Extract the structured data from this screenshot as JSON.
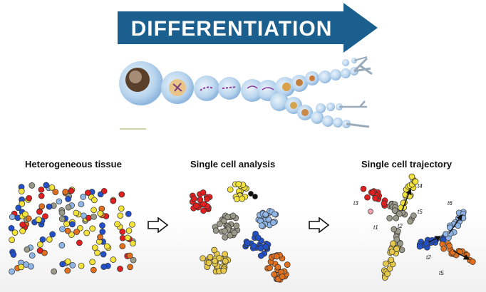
{
  "banner": {
    "title": "DIFFERENTIATION",
    "arrow_color": "#1a5f8e",
    "text_color": "#ffffff"
  },
  "panels": [
    {
      "title": "Heterogeneous tissue"
    },
    {
      "title": "Single cell analysis"
    },
    {
      "title": "Single cell trajectory"
    }
  ],
  "trajectory_labels": [
    "t3",
    "t4",
    "t1",
    "t2",
    "t6",
    "t5",
    "t2",
    "t5"
  ],
  "colors": {
    "red": "#e02020",
    "yellow": "#f2e23a",
    "blue_light": "#8fb6e6",
    "blue_dark": "#2250c8",
    "gray": "#9a9a8a",
    "orange": "#e0701e",
    "gold": "#e6c84a",
    "black": "#111111"
  },
  "icons": [
    "transition-arrow-icon"
  ]
}
